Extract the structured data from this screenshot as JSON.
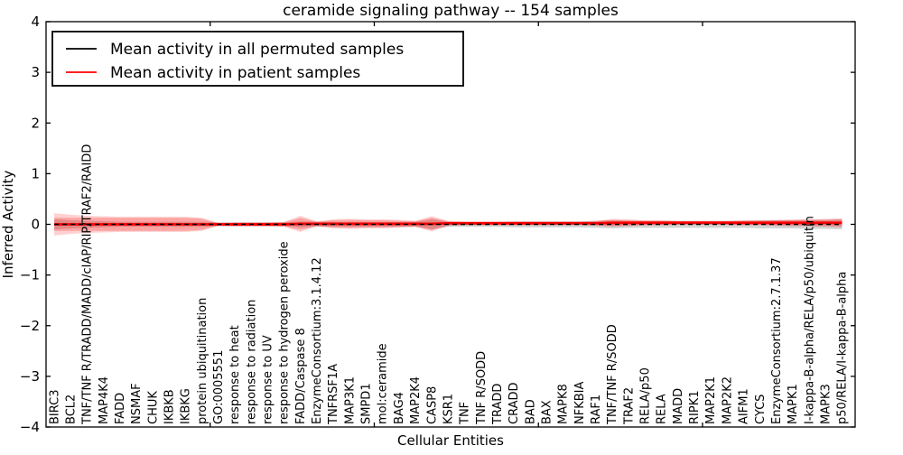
{
  "figure": {
    "title": "ceramide signaling pathway -- 154 samples",
    "xlabel": "Cellular Entities",
    "ylabel": "Inferred Activity"
  },
  "legend": {
    "entries": [
      {
        "label": "Mean activity in all permuted samples",
        "color": "#000000"
      },
      {
        "label": "Mean activity in patient samples",
        "color": "#ff0000"
      }
    ]
  },
  "chart_data": {
    "type": "line",
    "title": "ceramide signaling pathway -- 154 samples",
    "xlabel": "Cellular Entities",
    "ylabel": "Inferred Activity",
    "ylim": [
      -4,
      4
    ],
    "yticks": [
      -4,
      -3,
      -2,
      -1,
      0,
      1,
      2,
      3,
      4
    ],
    "xticks_axis_units": [
      10,
      20,
      30,
      40
    ],
    "xlim_axis_units": [
      0,
      49.3
    ],
    "grid": false,
    "legend_position": "upper-left",
    "categories": [
      "BIRC3",
      "BCL2",
      "TNF/TNF R/TRADD/MADD/cIAP/RIP/TRAF2/RAIDD",
      "MAP4K4",
      "FADD",
      "NSMAF",
      "CHUK",
      "IKBKB",
      "IKBKG",
      "protein ubiquitination",
      "GO:0005551",
      "response to heat",
      "response to radiation",
      "response to UV",
      "response to hydrogen peroxide",
      "FADD/Caspase 8",
      "EnzymeConsortium:3.1.4.12",
      "TNFRSF1A",
      "MAP3K1",
      "SMPD1",
      "mol:ceramide",
      "BAG4",
      "MAP2K4",
      "CASP8",
      "KSR1",
      "TNF",
      "TNF R/SODD",
      "TRADD",
      "CRADD",
      "BAD",
      "BAX",
      "MAPK8",
      "NFKBIA",
      "RAF1",
      "TNF/TNF R/SODD",
      "TRAF2",
      "RELA/p50",
      "RELA",
      "MADD",
      "RIPK1",
      "MAP2K1",
      "MAP2K2",
      "AIFM1",
      "CYCS",
      "EnzymeConsortium:2.7.1.37",
      "MAPK1",
      "I-kappa-B-alpha/RELA/p50/ubiquitin",
      "MAPK3",
      "p50/RELA/I-kappa-B-alpha"
    ],
    "series": [
      {
        "name": "Mean activity in all permuted samples",
        "color": "#000000",
        "linestyle": "dashed",
        "values": [
          0,
          0,
          0,
          0,
          0,
          0,
          0,
          0,
          0,
          0,
          0,
          0,
          0,
          0,
          0,
          0,
          0,
          0,
          0,
          0,
          0,
          0,
          0,
          0,
          0,
          0,
          0,
          0,
          0,
          0,
          0,
          0,
          0,
          0,
          0,
          0,
          0,
          0,
          0,
          0,
          0,
          0,
          0,
          0,
          0,
          0,
          0,
          0,
          0
        ]
      },
      {
        "name": "Mean activity in patient samples",
        "color": "#ff0000",
        "linestyle": "solid",
        "values": [
          0,
          0,
          0,
          0,
          0,
          0,
          0,
          0,
          0,
          0,
          0,
          0,
          0,
          0,
          0,
          0.01,
          0.01,
          0.01,
          0.01,
          0.01,
          0.01,
          0.01,
          0.01,
          0.01,
          0.02,
          0.02,
          0.02,
          0.02,
          0.02,
          0.02,
          0.02,
          0.02,
          0.02,
          0.02,
          0.03,
          0.03,
          0.03,
          0.03,
          0.03,
          0.03,
          0.03,
          0.03,
          0.03,
          0.03,
          0.03,
          0.03,
          0.03,
          0.03,
          0.03
        ]
      }
    ],
    "bands": [
      {
        "name": "permuted-samples-std-band",
        "color": "#808080",
        "opacity": 0.35,
        "center_series": 0,
        "half_widths": [
          0.1,
          0.08,
          0.07,
          0.06,
          0.05,
          0.05,
          0.05,
          0.05,
          0.05,
          0.05,
          0.04,
          0.04,
          0.04,
          0.04,
          0.04,
          0.06,
          0.05,
          0.05,
          0.05,
          0.05,
          0.05,
          0.05,
          0.05,
          0.1,
          0.05,
          0.05,
          0.05,
          0.05,
          0.06,
          0.06,
          0.06,
          0.06,
          0.06,
          0.07,
          0.08,
          0.07,
          0.07,
          0.07,
          0.07,
          0.07,
          0.07,
          0.07,
          0.07,
          0.08,
          0.08,
          0.08,
          0.09,
          0.09,
          0.1
        ]
      },
      {
        "name": "patient-samples-std-outer-band",
        "color": "#ff0000",
        "opacity": 0.18,
        "center_series": 1,
        "half_widths": [
          0.22,
          0.19,
          0.17,
          0.16,
          0.15,
          0.15,
          0.15,
          0.15,
          0.15,
          0.13,
          0.03,
          0.04,
          0.04,
          0.04,
          0.05,
          0.16,
          0.05,
          0.09,
          0.1,
          0.09,
          0.09,
          0.08,
          0.06,
          0.15,
          0.05,
          0.04,
          0.04,
          0.04,
          0.04,
          0.04,
          0.04,
          0.04,
          0.04,
          0.05,
          0.08,
          0.07,
          0.05,
          0.05,
          0.04,
          0.04,
          0.04,
          0.04,
          0.05,
          0.05,
          0.06,
          0.07,
          0.07,
          0.08,
          0.09
        ]
      },
      {
        "name": "patient-samples-std-inner-band",
        "color": "#ff0000",
        "opacity": 0.22,
        "center_series": 1,
        "half_widths": [
          0.13,
          0.13,
          0.13,
          0.13,
          0.13,
          0.13,
          0.13,
          0.13,
          0.13,
          0.11,
          0.02,
          0.03,
          0.03,
          0.03,
          0.04,
          0.12,
          0.04,
          0.07,
          0.08,
          0.07,
          0.07,
          0.06,
          0.05,
          0.12,
          0.04,
          0.03,
          0.03,
          0.03,
          0.03,
          0.03,
          0.03,
          0.03,
          0.03,
          0.04,
          0.06,
          0.05,
          0.04,
          0.04,
          0.03,
          0.03,
          0.03,
          0.03,
          0.04,
          0.04,
          0.05,
          0.05,
          0.06,
          0.06,
          0.07
        ]
      }
    ]
  }
}
